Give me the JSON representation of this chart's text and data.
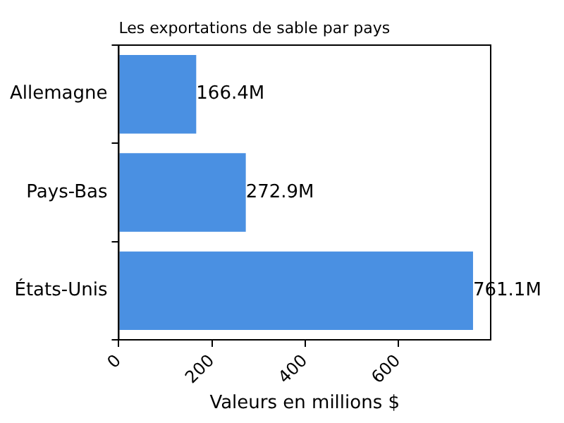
{
  "chart_data": {
    "type": "bar",
    "orientation": "horizontal",
    "title": "Les exportations de sable par pays",
    "xlabel": "Valeurs en millions $",
    "categories": [
      "Allemagne",
      "Pays-Bas",
      "États-Unis"
    ],
    "values": [
      166.4,
      272.9,
      761.1
    ],
    "value_labels": [
      "166.4M",
      "272.9M",
      "761.1M"
    ],
    "color": "#4a90e2",
    "xlim": [
      0,
      799
    ],
    "xticks": [
      0,
      200,
      400,
      600
    ],
    "grid": false,
    "legend": false
  }
}
